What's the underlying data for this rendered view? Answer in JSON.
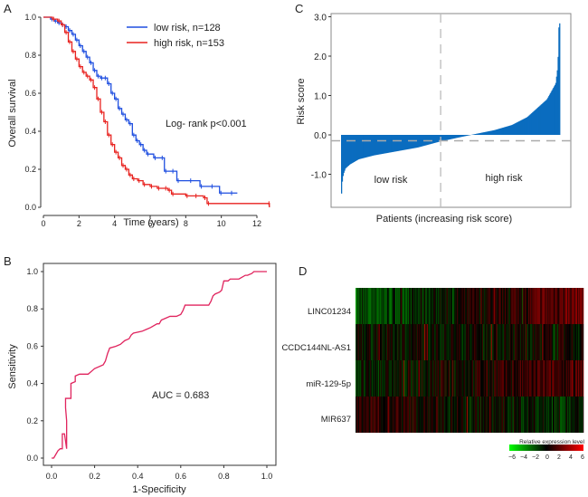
{
  "chart_data": [
    {
      "panel": "A",
      "type": "line",
      "subtype": "kaplan-meier",
      "title": "",
      "xlabel": "Time (years)",
      "ylabel": "Overall survival",
      "xlim": [
        0,
        12.7
      ],
      "ylim": [
        0,
        1.0
      ],
      "xticks": [
        "0",
        "2",
        "4",
        "6",
        "8",
        "10",
        "12"
      ],
      "yticks": [
        "0.0",
        "0.2",
        "0.4",
        "0.6",
        "0.8",
        "1.0"
      ],
      "legend_position": "top-right",
      "annotation": "Log- rank p<0.001",
      "series": [
        {
          "name": "low risk, n=128",
          "color": "#1f4fe0",
          "x": [
            0,
            0.4,
            0.6,
            0.8,
            1.0,
            1.2,
            1.4,
            1.6,
            1.8,
            2.0,
            2.2,
            2.4,
            2.6,
            2.8,
            3.0,
            3.2,
            3.4,
            3.6,
            3.8,
            4.0,
            4.2,
            4.4,
            4.6,
            4.8,
            5.0,
            5.2,
            5.4,
            5.6,
            5.8,
            6.2,
            6.6,
            6.8,
            7.2,
            7.5,
            8.2,
            8.8,
            9.4,
            9.9,
            10.5,
            10.9
          ],
          "y": [
            1.0,
            0.99,
            0.98,
            0.97,
            0.96,
            0.95,
            0.93,
            0.91,
            0.88,
            0.85,
            0.82,
            0.79,
            0.76,
            0.72,
            0.69,
            0.68,
            0.68,
            0.65,
            0.6,
            0.57,
            0.52,
            0.49,
            0.46,
            0.44,
            0.38,
            0.35,
            0.33,
            0.3,
            0.28,
            0.26,
            0.26,
            0.19,
            0.19,
            0.14,
            0.14,
            0.11,
            0.11,
            0.075,
            0.075,
            0.075
          ]
        },
        {
          "name": "high risk, n=153",
          "color": "#e8221f",
          "x": [
            0,
            0.5,
            0.8,
            1.0,
            1.2,
            1.4,
            1.6,
            1.8,
            2.0,
            2.2,
            2.4,
            2.6,
            2.8,
            3.0,
            3.2,
            3.4,
            3.6,
            3.8,
            4.0,
            4.2,
            4.4,
            4.6,
            4.8,
            5.0,
            5.3,
            5.6,
            6.0,
            6.4,
            6.8,
            7.0,
            7.2,
            8.0,
            8.5,
            9.0,
            9.2,
            12.6,
            12.7
          ],
          "y": [
            1.0,
            0.99,
            0.98,
            0.96,
            0.92,
            0.87,
            0.82,
            0.78,
            0.74,
            0.71,
            0.69,
            0.67,
            0.63,
            0.57,
            0.5,
            0.45,
            0.38,
            0.33,
            0.29,
            0.26,
            0.22,
            0.2,
            0.17,
            0.15,
            0.14,
            0.12,
            0.11,
            0.1,
            0.1,
            0.09,
            0.07,
            0.06,
            0.06,
            0.05,
            0.02,
            0.02,
            0.0
          ]
        }
      ]
    },
    {
      "panel": "B",
      "type": "line",
      "subtype": "roc",
      "title": "",
      "xlabel": "1-Specificity",
      "ylabel": "Sensitivity",
      "xlim": [
        0,
        1
      ],
      "ylim": [
        0,
        1
      ],
      "xticks": [
        "0.0",
        "0.2",
        "0.4",
        "0.6",
        "0.8",
        "1.0"
      ],
      "yticks": [
        "0.0",
        "0.2",
        "0.4",
        "0.6",
        "0.8",
        "1.0"
      ],
      "annotation": "AUC =  0.683",
      "series": [
        {
          "name": "ROC",
          "color": "#e0245e",
          "x": [
            0,
            0.01,
            0.02,
            0.03,
            0.04,
            0.05,
            0.05,
            0.06,
            0.07,
            0.07,
            0.065,
            0.065,
            0.07,
            0.09,
            0.09,
            0.11,
            0.11,
            0.13,
            0.17,
            0.19,
            0.2,
            0.24,
            0.25,
            0.26,
            0.27,
            0.3,
            0.32,
            0.34,
            0.36,
            0.37,
            0.38,
            0.42,
            0.44,
            0.46,
            0.49,
            0.5,
            0.51,
            0.53,
            0.55,
            0.58,
            0.6,
            0.61,
            0.62,
            0.67,
            0.73,
            0.74,
            0.75,
            0.76,
            0.78,
            0.79,
            0.8,
            0.82,
            0.83,
            0.87,
            0.9,
            0.91,
            0.93,
            0.94,
            1.0
          ],
          "y": [
            0,
            0.0,
            0.02,
            0.04,
            0.05,
            0.05,
            0.13,
            0.13,
            0.05,
            0.2,
            0.27,
            0.32,
            0.32,
            0.32,
            0.4,
            0.41,
            0.44,
            0.45,
            0.45,
            0.47,
            0.48,
            0.5,
            0.52,
            0.56,
            0.59,
            0.6,
            0.61,
            0.63,
            0.64,
            0.66,
            0.67,
            0.68,
            0.69,
            0.7,
            0.72,
            0.72,
            0.74,
            0.75,
            0.76,
            0.76,
            0.77,
            0.79,
            0.82,
            0.82,
            0.82,
            0.84,
            0.87,
            0.88,
            0.89,
            0.9,
            0.95,
            0.95,
            0.96,
            0.96,
            0.98,
            0.98,
            0.99,
            1.0,
            1.0
          ]
        }
      ]
    },
    {
      "panel": "C",
      "type": "bar",
      "subtype": "ranked-risk-score",
      "title": "",
      "xlabel": "Patients (increasing risk score)",
      "ylabel": "Risk score",
      "ylim": [
        -1.75,
        3.1
      ],
      "yticks": [
        "-1.0",
        "0.0",
        "1.0",
        "2.0",
        "3.0"
      ],
      "cutoff_value": -0.15,
      "split_fraction": 0.455,
      "color": "#0a6cbf",
      "region_labels": [
        "low risk",
        "high risk"
      ],
      "n_patients": 281,
      "quantiles": [
        0,
        0.005,
        0.01,
        0.02,
        0.04,
        0.08,
        0.15,
        0.25,
        0.35,
        0.45,
        0.55,
        0.62,
        0.7,
        0.78,
        0.85,
        0.9,
        0.94,
        0.97,
        0.98,
        0.99,
        0.995,
        1.0
      ],
      "values": [
        -1.65,
        -1.2,
        -1.0,
        -0.85,
        -0.75,
        -0.62,
        -0.52,
        -0.42,
        -0.32,
        -0.17,
        -0.05,
        0.03,
        0.12,
        0.25,
        0.45,
        0.7,
        0.9,
        1.2,
        1.3,
        1.75,
        2.8,
        2.85
      ]
    },
    {
      "panel": "D",
      "type": "heatmap",
      "title": "",
      "rows": [
        "LINC01234",
        "CCDC144NL-AS1",
        "miR-129-5p",
        "MIR637"
      ],
      "n_columns": 281,
      "row_trend": [
        {
          "start": -2.2,
          "end": 2.6
        },
        {
          "start": 0.0,
          "end": 0.0
        },
        {
          "start": -0.8,
          "end": 1.6
        },
        {
          "start": 1.0,
          "end": -0.9
        }
      ],
      "colorbar": {
        "title": "Relative expression level",
        "ticks": [
          "−6",
          "−4",
          "−2",
          "0",
          "2",
          "4",
          "6"
        ],
        "range": [
          -6,
          6
        ],
        "low_color": "#00ff00",
        "mid_color": "#000000",
        "high_color": "#ff0000"
      }
    }
  ],
  "panel_labels": [
    "A",
    "B",
    "C",
    "D"
  ]
}
